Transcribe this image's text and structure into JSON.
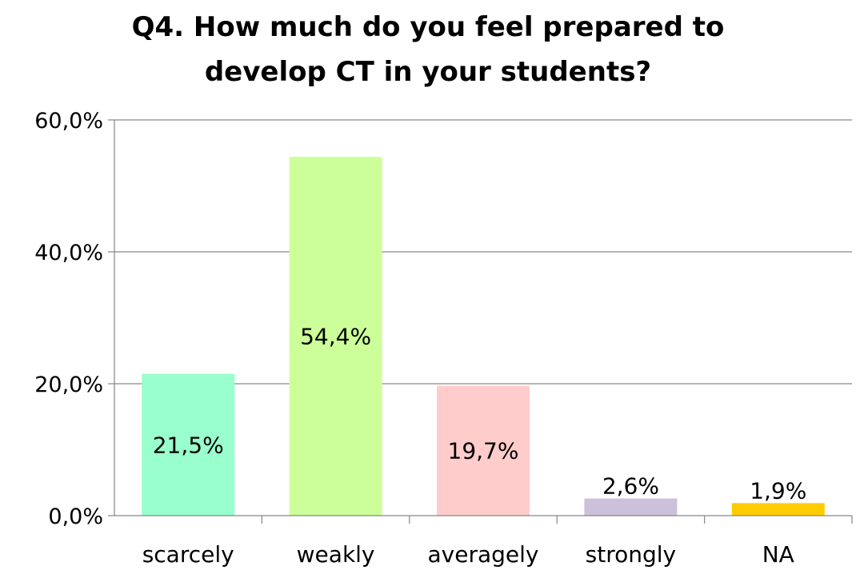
{
  "chart_data": {
    "type": "bar",
    "title_lines": [
      "Q4. How much do you feel prepared to",
      "develop CT in your students?"
    ],
    "categories": [
      "scarcely",
      "weakly",
      "averagely",
      "strongly",
      "NA"
    ],
    "values": [
      21.5,
      54.4,
      19.7,
      2.6,
      1.9
    ],
    "data_labels": [
      "21,5%",
      "54,4%",
      "19,7%",
      "2,6%",
      "1,9%"
    ],
    "colors": [
      "#99ffcc",
      "#ccff99",
      "#ffcccc",
      "#ccc0da",
      "#ffcc00"
    ],
    "yticks": [
      0,
      20,
      40,
      60
    ],
    "ytick_labels": [
      "0,0%",
      "20,0%",
      "40,0%",
      "60,0%"
    ],
    "ylim": [
      0,
      60
    ],
    "grid": true,
    "legend": "none"
  }
}
